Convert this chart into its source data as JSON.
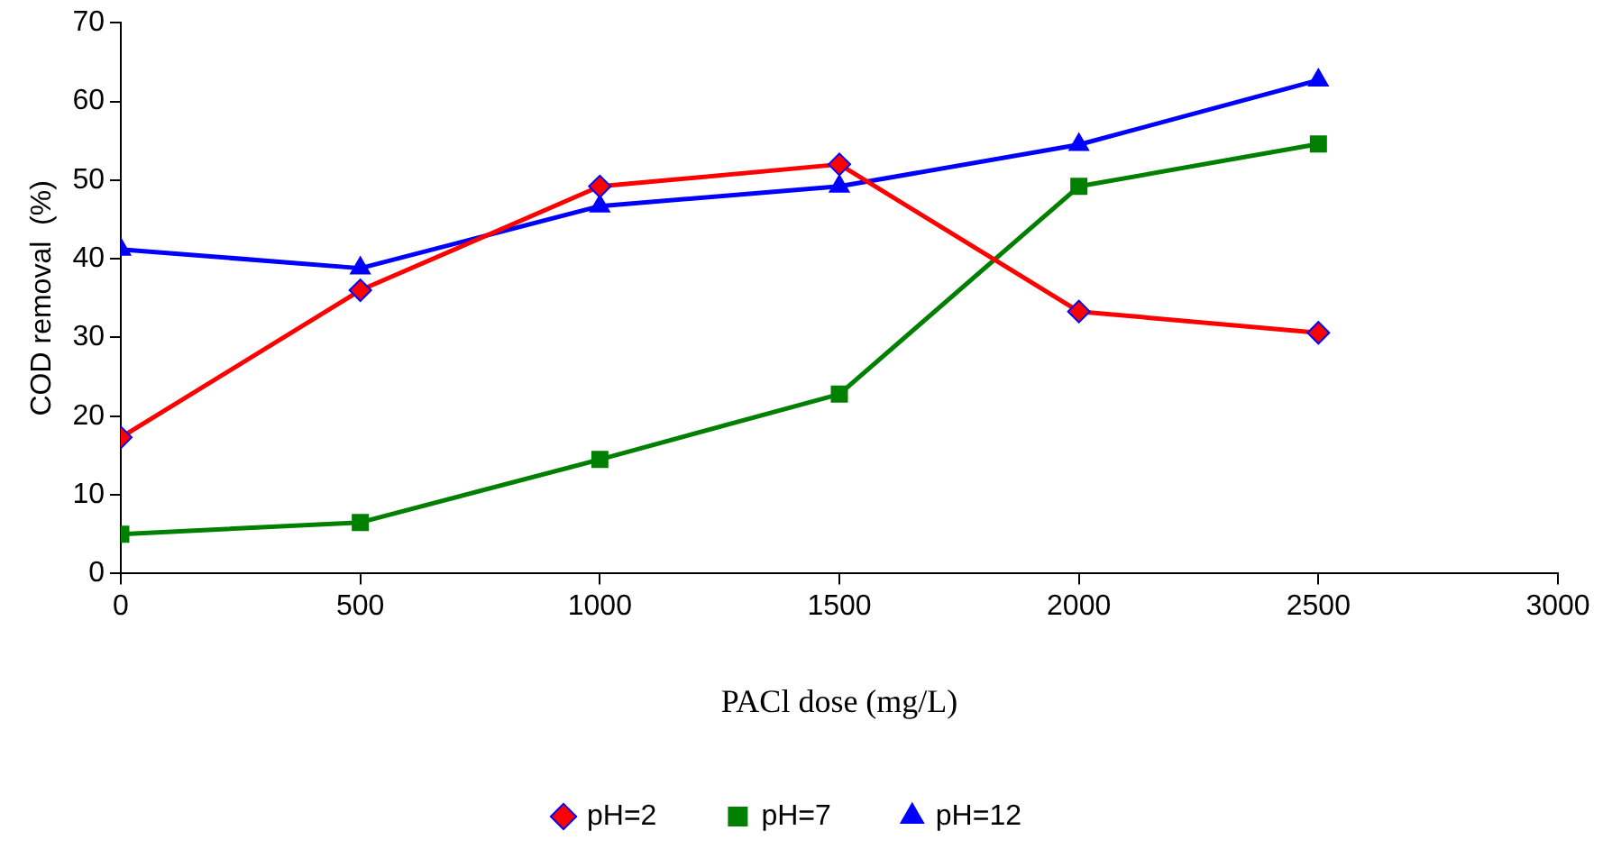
{
  "chart_data": {
    "type": "line",
    "xlabel": "PACl dose (mg/L)",
    "ylabel": "COD removal  (%)",
    "x": [
      0,
      500,
      1000,
      1500,
      2000,
      2500
    ],
    "series": [
      {
        "name": "pH=2",
        "color": "#ff0000",
        "marker": "diamond",
        "values": [
          17.3,
          36,
          49.2,
          52,
          33.3,
          30.6
        ]
      },
      {
        "name": "pH=7",
        "color": "#008000",
        "marker": "square",
        "values": [
          5,
          6.5,
          14.5,
          22.8,
          49.2,
          54.6
        ]
      },
      {
        "name": "pH=12",
        "color": "#0000ff",
        "marker": "triangle",
        "values": [
          41.2,
          38.8,
          46.7,
          49.2,
          54.5,
          62.7
        ]
      }
    ],
    "xlim": [
      0,
      3000
    ],
    "xticks": [
      0,
      500,
      1000,
      1500,
      2000,
      2500,
      3000
    ],
    "ylim": [
      0,
      70
    ],
    "yticks": [
      0,
      10,
      20,
      30,
      40,
      50,
      60,
      70
    ],
    "grid": false,
    "legend": "bottom",
    "line_style": "solid"
  }
}
